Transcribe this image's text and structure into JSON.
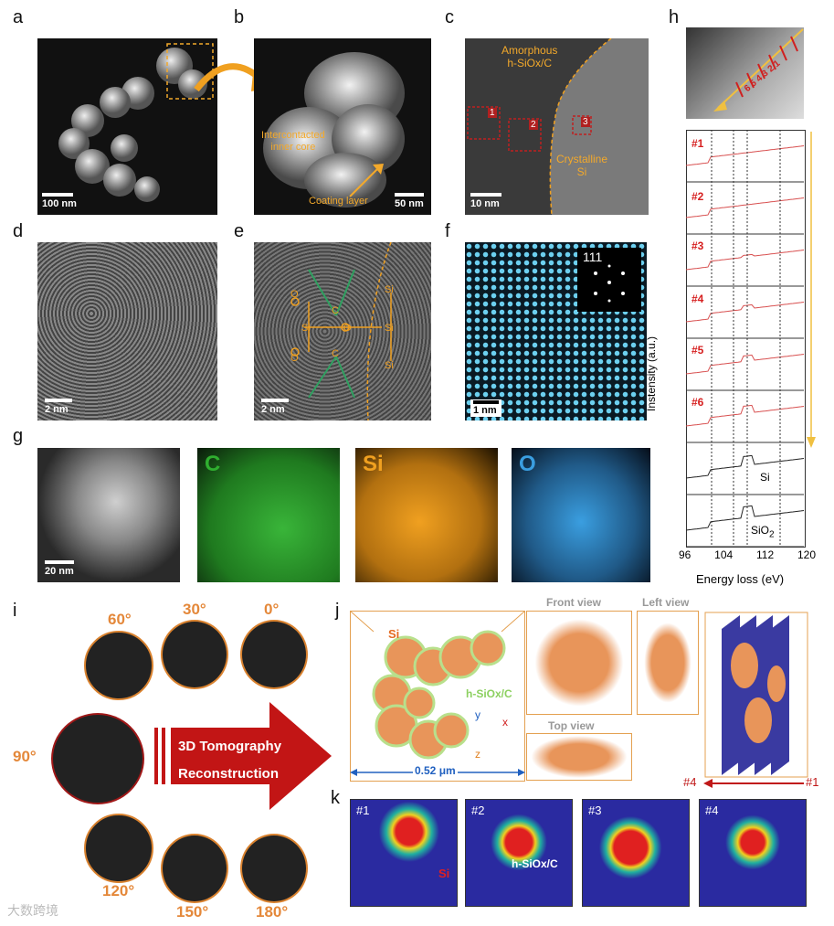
{
  "panel_labels": {
    "a": "a",
    "b": "b",
    "c": "c",
    "d": "d",
    "e": "e",
    "f": "f",
    "g": "g",
    "h": "h",
    "i": "i",
    "j": "j",
    "k": "k"
  },
  "a": {
    "scale": "100 nm"
  },
  "b": {
    "scale": "50 nm",
    "core_label": "Intercontacted\ninner core",
    "coating_label": "Coating layer"
  },
  "c": {
    "scale": "10 nm",
    "amorphous": "Amorphous\nh-SiOx/C",
    "crystalline": "Crystalline\nSi",
    "boxes": [
      "1",
      "2",
      "3"
    ]
  },
  "d": {
    "scale": "2 nm"
  },
  "e": {
    "scale": "2 nm"
  },
  "f": {
    "scale": "1 nm",
    "inset": "111"
  },
  "g": {
    "scale": "20 nm",
    "maps": [
      {
        "label": "C",
        "color": "#2fae2f"
      },
      {
        "label": "Si",
        "color": "#f0a020"
      },
      {
        "label": "O",
        "color": "#3a9ee0"
      }
    ]
  },
  "h": {
    "rows": [
      "#1",
      "#2",
      "#3",
      "#4",
      "#5",
      "#6"
    ],
    "ref_si": "Si",
    "ref_sio2": "SiO2",
    "ylabel": "Instensity (a.u.)",
    "xlabel": "Energy loss (eV)",
    "ticks": [
      "96",
      "104",
      "112",
      "120"
    ],
    "points": "6 5 4 3 2 1"
  },
  "i": {
    "angles": [
      "60°",
      "30°",
      "0°",
      "90°",
      "120°",
      "150°",
      "180°"
    ],
    "arrow_line1": "3D Tomography",
    "arrow_line2": "Reconstruction"
  },
  "j": {
    "si": "Si",
    "hsio": "h-SiOx/C",
    "front": "Front view",
    "left": "Left view",
    "top": "Top view",
    "width": "0.52 μm",
    "axes": {
      "x": "x",
      "y": "y",
      "z": "z"
    },
    "slice_start": "#4",
    "slice_end": "#1"
  },
  "k": {
    "panels": [
      "#1",
      "#2",
      "#3",
      "#4"
    ],
    "si": "Si",
    "hsio": "h-SiOx/C"
  },
  "watermark": "大数跨境"
}
